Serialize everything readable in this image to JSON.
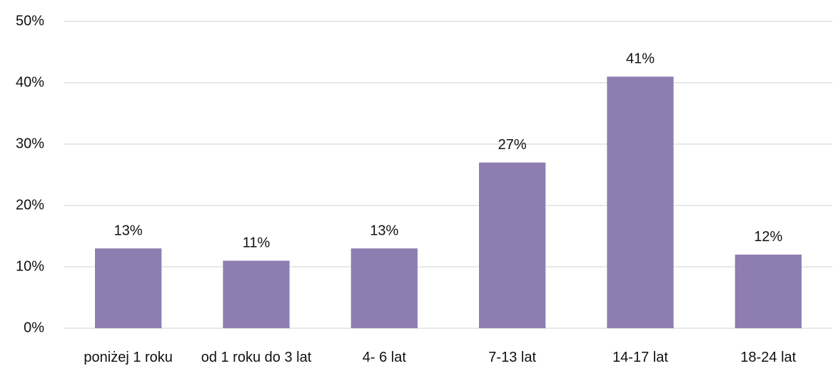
{
  "chart_data": {
    "type": "bar",
    "categories": [
      "poniżej 1 roku",
      "od 1 roku do 3 lat",
      "4- 6 lat",
      "7-13 lat",
      "14-17 lat",
      "18-24 lat"
    ],
    "values": [
      13,
      11,
      13,
      27,
      41,
      12
    ],
    "value_labels": [
      "13%",
      "11%",
      "13%",
      "27%",
      "41%",
      "12%"
    ],
    "color": "#8e7db1",
    "ylim": [
      0,
      50
    ],
    "yticks": [
      {
        "value": 0,
        "label": "0%"
      },
      {
        "value": 10,
        "label": "10%"
      },
      {
        "value": 20,
        "label": "20%"
      },
      {
        "value": 30,
        "label": "30%"
      },
      {
        "value": 40,
        "label": "40%"
      },
      {
        "value": 50,
        "label": "50%"
      }
    ],
    "grid": true
  }
}
